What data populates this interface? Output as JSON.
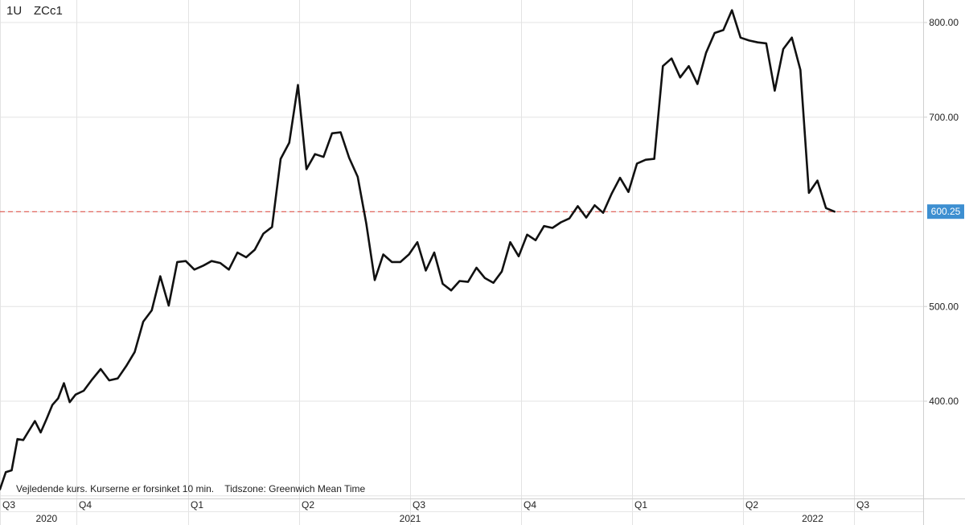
{
  "header": {
    "interval": "1U",
    "symbol": "ZCc1"
  },
  "footnote": "Vejledende kurs. Kurserne er forsinket 10 min.    Tidszone: Greenwich Mean Time",
  "colors": {
    "line": "#111111",
    "reference": "#e0453a",
    "price_tag_bg": "#3d8fd1",
    "grid": "#e3e3e3"
  },
  "chart_data": {
    "type": "line",
    "title": "",
    "xlabel": "",
    "ylabel": "",
    "y_axis_side": "right",
    "ylim": [
      296,
      820
    ],
    "yticks": [
      {
        "value": 800,
        "label": "800.00"
      },
      {
        "value": 700,
        "label": "700.00"
      },
      {
        "value": 500,
        "label": "500.00"
      },
      {
        "value": 400,
        "label": "400.00"
      }
    ],
    "x_quarters": [
      {
        "label": "Q3",
        "date": "2020-07-01"
      },
      {
        "label": "Q4",
        "date": "2020-10-01"
      },
      {
        "label": "Q1",
        "date": "2021-01-01"
      },
      {
        "label": "Q2",
        "date": "2021-04-01"
      },
      {
        "label": "Q3",
        "date": "2021-07-01"
      },
      {
        "label": "Q4",
        "date": "2021-10-01"
      },
      {
        "label": "Q1",
        "date": "2022-01-01"
      },
      {
        "label": "Q2",
        "date": "2022-04-01"
      },
      {
        "label": "Q3",
        "date": "2022-07-01"
      }
    ],
    "x_years": [
      {
        "label": "2020",
        "date": "2020-08-26"
      },
      {
        "label": "2021",
        "date": "2021-07-01"
      },
      {
        "label": "2022",
        "date": "2022-05-28"
      }
    ],
    "grid": true,
    "last_price": {
      "value": 600.25,
      "label": "600.25"
    },
    "series": [
      {
        "values": [
          [
            "2020-07-01",
            307
          ],
          [
            "2020-07-08",
            325
          ],
          [
            "2020-07-15",
            327
          ],
          [
            "2020-07-22",
            360
          ],
          [
            "2020-07-29",
            359
          ],
          [
            "2020-08-05",
            369
          ],
          [
            "2020-08-12",
            379
          ],
          [
            "2020-08-19",
            367
          ],
          [
            "2020-08-26",
            381
          ],
          [
            "2020-09-02",
            396
          ],
          [
            "2020-09-09",
            403
          ],
          [
            "2020-09-16",
            419
          ],
          [
            "2020-09-23",
            399
          ],
          [
            "2020-09-30",
            407
          ],
          [
            "2020-10-07",
            411
          ],
          [
            "2020-10-14",
            423
          ],
          [
            "2020-10-21",
            434
          ],
          [
            "2020-10-28",
            422
          ],
          [
            "2020-11-04",
            424
          ],
          [
            "2020-11-11",
            437
          ],
          [
            "2020-11-18",
            452
          ],
          [
            "2020-11-25",
            484
          ],
          [
            "2020-12-02",
            496
          ],
          [
            "2020-12-09",
            532
          ],
          [
            "2020-12-16",
            501
          ],
          [
            "2020-12-23",
            547
          ],
          [
            "2020-12-30",
            548
          ],
          [
            "2021-01-06",
            539
          ],
          [
            "2021-01-13",
            543
          ],
          [
            "2021-01-20",
            548
          ],
          [
            "2021-01-27",
            546
          ],
          [
            "2021-02-03",
            539
          ],
          [
            "2021-02-10",
            557
          ],
          [
            "2021-02-17",
            552
          ],
          [
            "2021-02-24",
            560
          ],
          [
            "2021-03-03",
            577
          ],
          [
            "2021-03-10",
            584
          ],
          [
            "2021-03-17",
            656
          ],
          [
            "2021-03-24",
            673
          ],
          [
            "2021-03-31",
            734
          ],
          [
            "2021-04-07",
            645
          ],
          [
            "2021-04-14",
            661
          ],
          [
            "2021-04-21",
            658
          ],
          [
            "2021-04-28",
            683
          ],
          [
            "2021-05-05",
            684
          ],
          [
            "2021-05-12",
            657
          ],
          [
            "2021-05-19",
            637
          ],
          [
            "2021-05-26",
            588
          ],
          [
            "2021-06-02",
            528
          ],
          [
            "2021-06-09",
            555
          ],
          [
            "2021-06-16",
            547
          ],
          [
            "2021-06-23",
            547
          ],
          [
            "2021-06-30",
            555
          ],
          [
            "2021-07-07",
            568
          ],
          [
            "2021-07-14",
            538
          ],
          [
            "2021-07-21",
            557
          ],
          [
            "2021-07-28",
            524
          ],
          [
            "2021-08-04",
            517
          ],
          [
            "2021-08-11",
            527
          ],
          [
            "2021-08-18",
            526
          ],
          [
            "2021-08-25",
            541
          ],
          [
            "2021-09-01",
            530
          ],
          [
            "2021-09-08",
            525
          ],
          [
            "2021-09-15",
            537
          ],
          [
            "2021-09-22",
            568
          ],
          [
            "2021-09-29",
            553
          ],
          [
            "2021-10-06",
            576
          ],
          [
            "2021-10-13",
            570
          ],
          [
            "2021-10-20",
            585
          ],
          [
            "2021-10-27",
            583
          ],
          [
            "2021-11-03",
            589
          ],
          [
            "2021-11-10",
            593
          ],
          [
            "2021-11-17",
            606
          ],
          [
            "2021-11-24",
            594
          ],
          [
            "2021-12-01",
            607
          ],
          [
            "2021-12-08",
            599
          ],
          [
            "2021-12-15",
            619
          ],
          [
            "2021-12-22",
            636
          ],
          [
            "2021-12-29",
            621
          ],
          [
            "2022-01-05",
            651
          ],
          [
            "2022-01-12",
            655
          ],
          [
            "2022-01-19",
            656
          ],
          [
            "2022-01-26",
            754
          ],
          [
            "2022-02-02",
            762
          ],
          [
            "2022-02-09",
            742
          ],
          [
            "2022-02-16",
            754
          ],
          [
            "2022-02-23",
            735
          ],
          [
            "2022-03-02",
            768
          ],
          [
            "2022-03-09",
            789
          ],
          [
            "2022-03-16",
            792
          ],
          [
            "2022-03-23",
            813
          ],
          [
            "2022-03-30",
            784
          ],
          [
            "2022-04-06",
            781
          ],
          [
            "2022-04-13",
            779
          ],
          [
            "2022-04-20",
            778
          ],
          [
            "2022-04-27",
            728
          ],
          [
            "2022-05-04",
            772
          ],
          [
            "2022-05-11",
            784
          ],
          [
            "2022-05-18",
            750
          ],
          [
            "2022-05-25",
            620
          ],
          [
            "2022-06-01",
            633
          ],
          [
            "2022-06-08",
            604
          ],
          [
            "2022-06-15",
            600.25
          ]
        ]
      }
    ]
  }
}
